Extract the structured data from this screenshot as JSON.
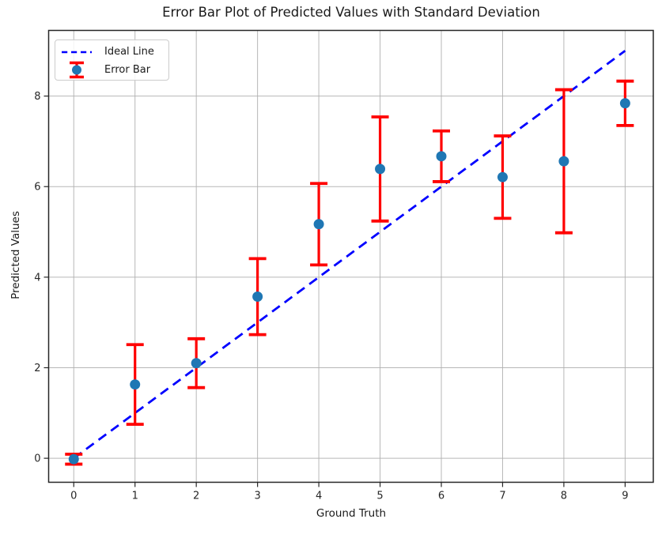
{
  "chart_data": {
    "type": "scatter",
    "subtype": "errorbar",
    "title": "Error Bar Plot of Predicted Values with Standard Deviation",
    "xlabel": "Ground Truth",
    "ylabel": "Predicted Values",
    "xlim": [
      -0.41,
      9.46
    ],
    "ylim": [
      -0.53,
      9.45
    ],
    "xticks": [
      0,
      1,
      2,
      3,
      4,
      5,
      6,
      7,
      8,
      9
    ],
    "yticks": [
      0,
      2,
      4,
      6,
      8
    ],
    "xtick_labels": [
      "0",
      "1",
      "2",
      "3",
      "4",
      "5",
      "6",
      "7",
      "8",
      "9"
    ],
    "ytick_labels": [
      "0",
      "2",
      "4",
      "6",
      "8"
    ],
    "grid": true,
    "legend": {
      "position": "upper-left",
      "items": [
        {
          "label": "Ideal Line",
          "swatch": "dashed-line"
        },
        {
          "label": "Error Bar",
          "swatch": "errorbar-marker"
        }
      ]
    },
    "series": [
      {
        "name": "Ideal Line",
        "type": "line",
        "style": "dashed",
        "color": "#0000ff",
        "x": [
          0,
          9
        ],
        "y": [
          0,
          9
        ]
      },
      {
        "name": "Error Bar",
        "type": "errorbar",
        "marker": "circle",
        "marker_color": "#1f77b4",
        "error_color": "#ff0000",
        "x": [
          0,
          1,
          2,
          3,
          4,
          5,
          6,
          7,
          8,
          9
        ],
        "y": [
          -0.02,
          1.63,
          2.1,
          3.57,
          5.17,
          6.39,
          6.67,
          6.21,
          6.56,
          7.84
        ],
        "yerr": [
          0.11,
          0.88,
          0.54,
          0.84,
          0.9,
          1.15,
          0.56,
          0.91,
          1.58,
          0.49
        ]
      }
    ],
    "colors": {
      "grid": "#b0b0b0",
      "spine": "#262626",
      "tick_text": "#262626",
      "background": "#ffffff"
    }
  }
}
